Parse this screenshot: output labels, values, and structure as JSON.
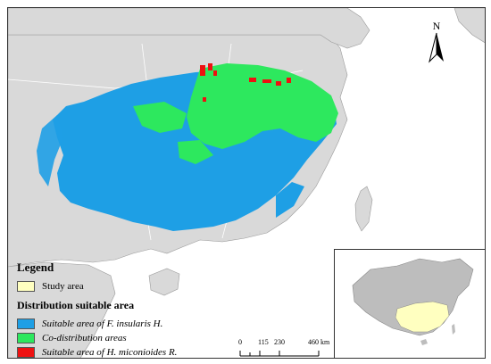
{
  "north_label": "N",
  "legend": {
    "title": "Legend",
    "study_area": "Study area",
    "subtitle": "Distribution suitable area",
    "items": [
      {
        "label": "Suitable area of F. insularis H.",
        "color": "#1e9fe5"
      },
      {
        "label": "Co-distribution areas",
        "color": "#2de85e"
      },
      {
        "label": "Suitable area of H. miconioides R.",
        "color": "#ee1111"
      }
    ],
    "study_area_color": "#ffffc0"
  },
  "scale_bar": {
    "ticks": [
      "0",
      "115",
      "230",
      "460 km"
    ]
  },
  "colors": {
    "land": "#d9d9d9",
    "sea": "#ffffff",
    "border": "#9a9a9a"
  }
}
